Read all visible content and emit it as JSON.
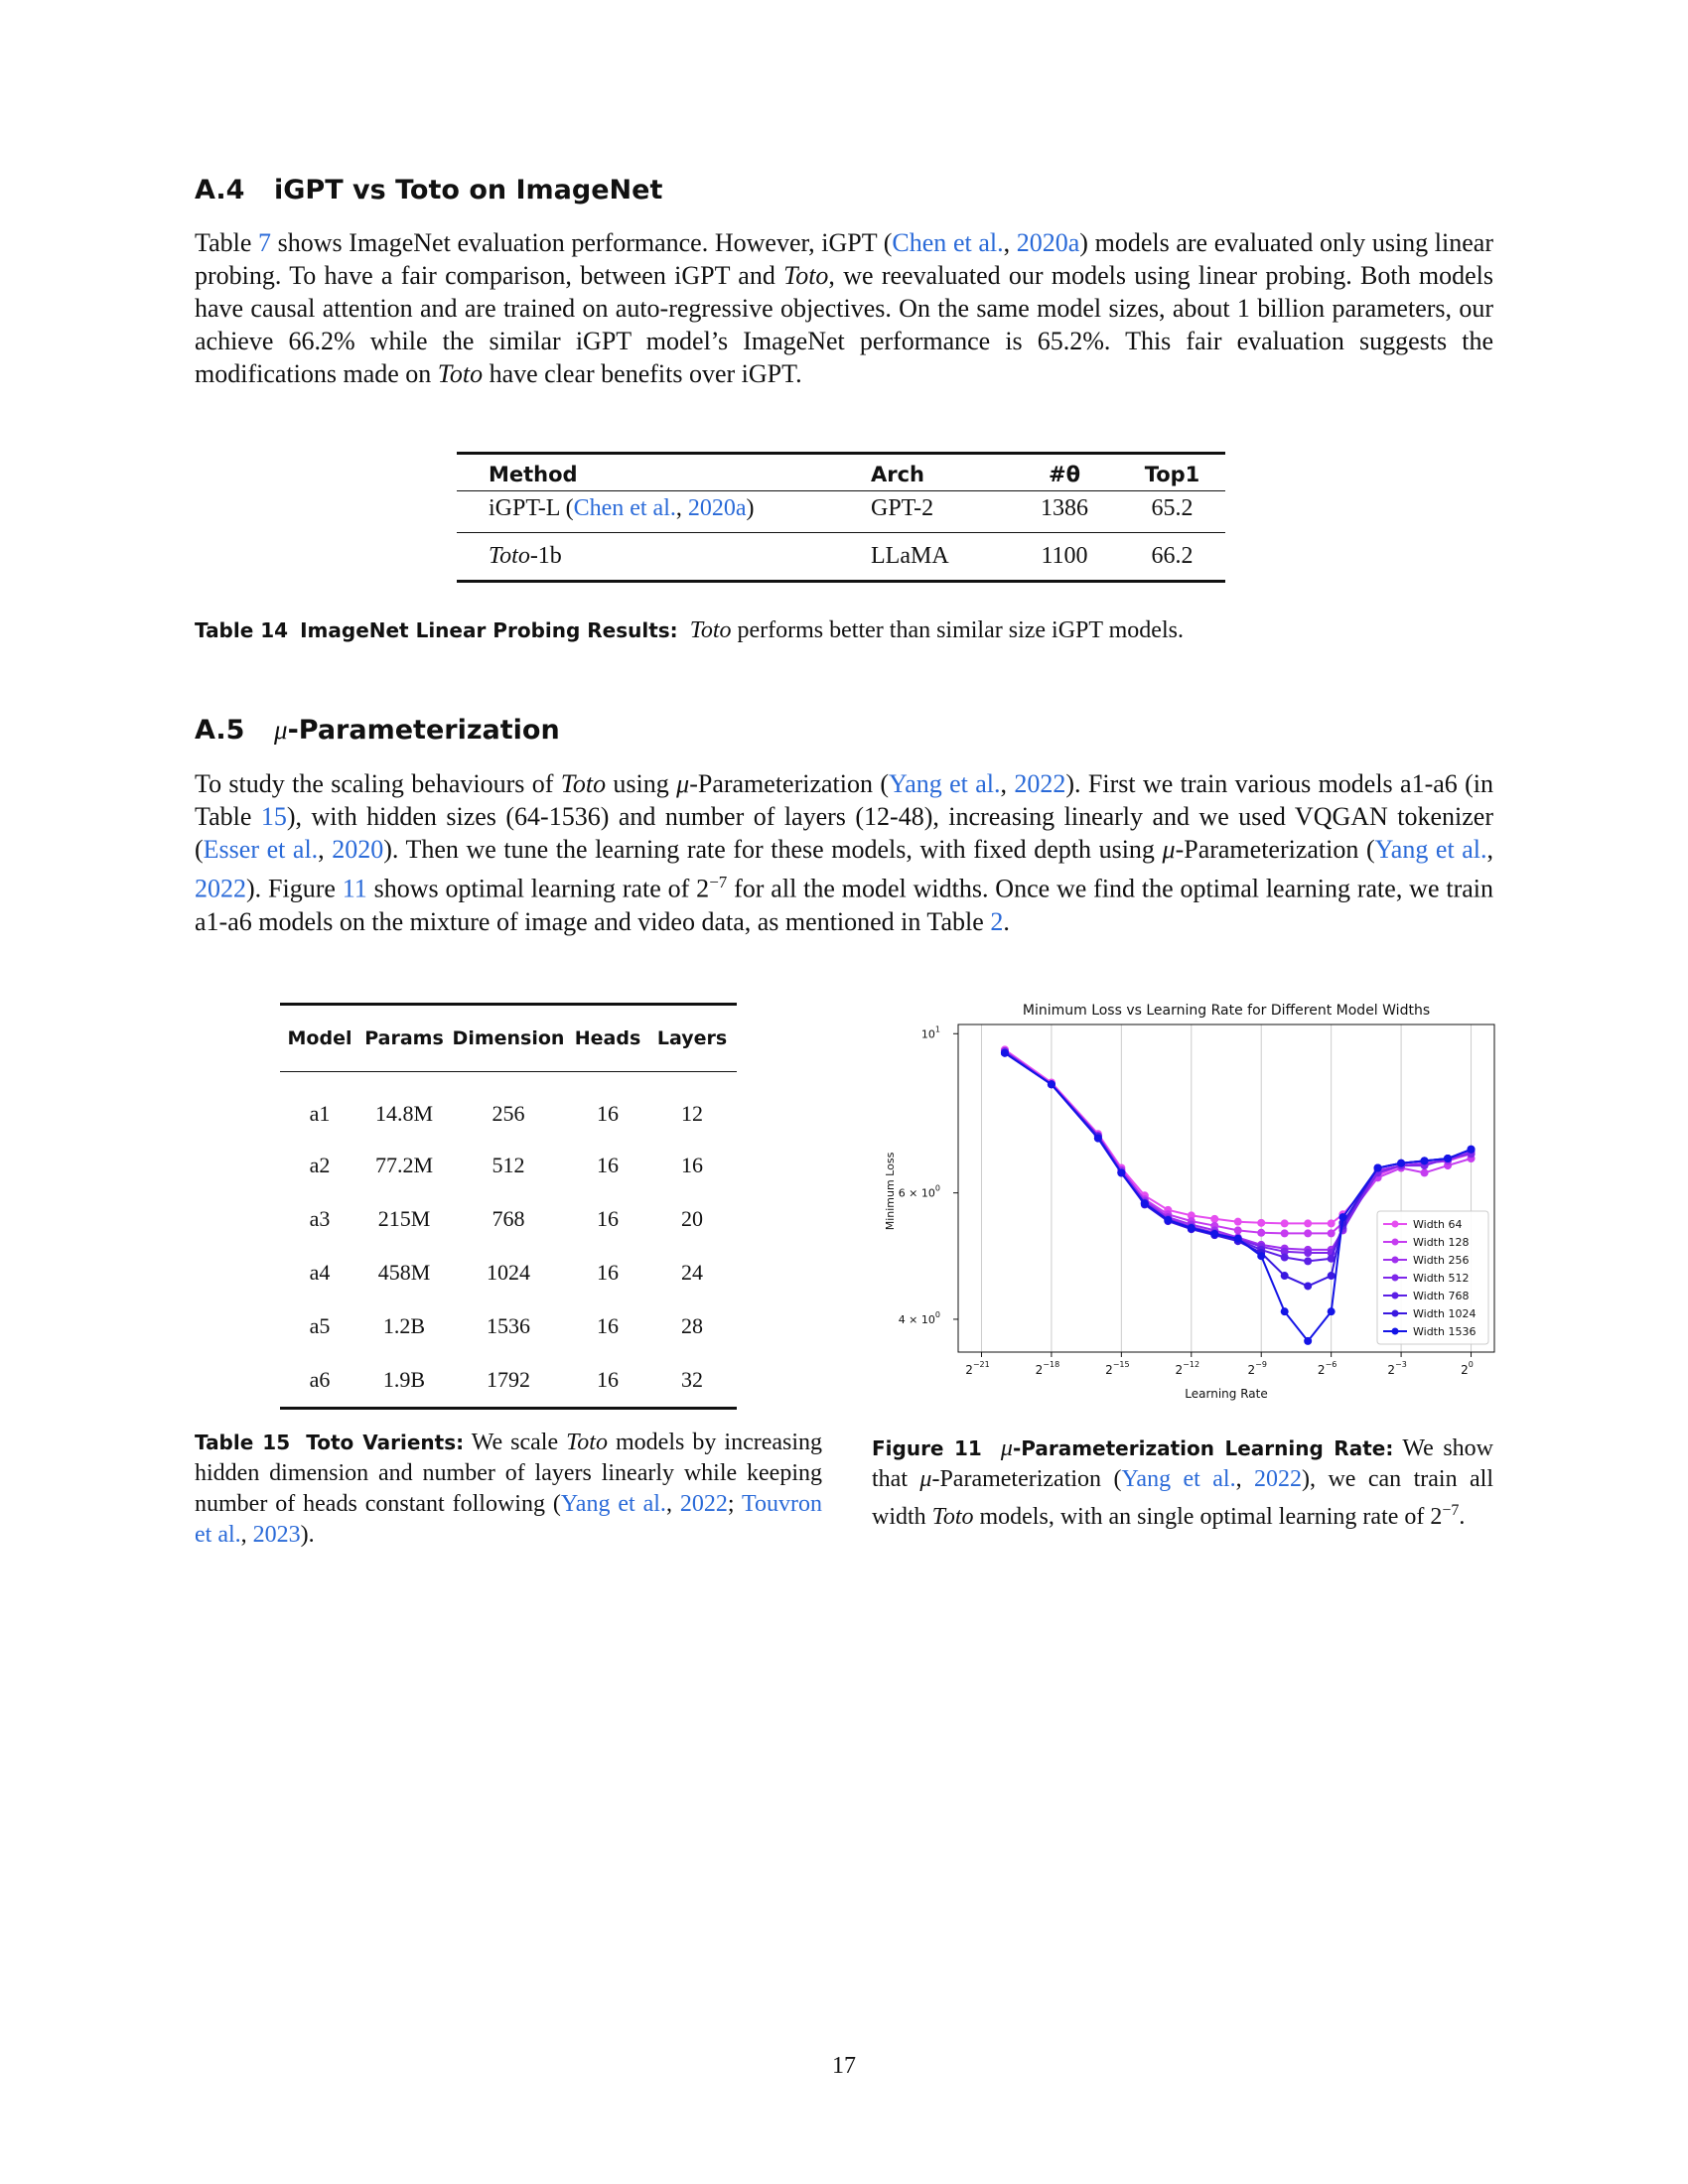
{
  "section_a4": {
    "number": "A.4",
    "title": "iGPT vs Toto on ImageNet",
    "para": {
      "s1a": "Table ",
      "s1ref": "7",
      "s1b": " shows ImageNet evaluation performance. However, iGPT (",
      "cite1": "Chen et al.",
      "cite1sep": ", ",
      "cite1year": "2020a",
      "s2": ") models are evaluated only using linear probing. To have a fair comparison, between iGPT and ",
      "toto1": "Toto",
      "s3": ", we reevaluated our models using linear probing. Both models have causal attention and are trained on auto-regressive objectives. On the same model sizes, about 1 billion parameters, our achieve 66.2% while the similar iGPT model’s ImageNet performance is 65.2%. This fair evaluation suggests the modifications made on ",
      "toto2": "Toto",
      "s4": " have clear benefits over iGPT."
    }
  },
  "table14": {
    "headers": [
      "Method",
      "Arch",
      "#θ",
      "Top1"
    ],
    "rows": [
      {
        "method_pre": "iGPT-L (",
        "method_cite": "Chen et al.",
        "method_sep": ", ",
        "method_year": "2020a",
        "method_post": ")",
        "arch": "GPT-2",
        "params": "1386",
        "top1": "65.2"
      },
      {
        "method_it": "Toto",
        "method_rest": "-1b",
        "arch": "LLaMA",
        "params": "1100",
        "top1": "66.2"
      }
    ],
    "caption_label": "Table 14",
    "caption_title": "ImageNet Linear Probing Results:",
    "caption_it": "Toto",
    "caption_text": " performs better than similar size iGPT models."
  },
  "section_a5": {
    "number": "A.5",
    "mu": "μ",
    "title": "-Parameterization",
    "para": {
      "a": "To study the scaling behaviours of ",
      "toto": "Toto",
      "b": " using ",
      "mu1": "μ",
      "c": "-Parameterization (",
      "cite1": "Yang et al.",
      "sep": ", ",
      "year1": "2022",
      "d": "). First we train various models a1-a6 (in Table ",
      "ref15": "15",
      "e": "), with hidden sizes (64-1536) and number of layers (12-48), increasing linearly and we used VQGAN tokenizer (",
      "cite2": "Esser et al.",
      "year2": "2020",
      "f": "). Then we tune the learning rate for these models, with fixed depth using ",
      "mu2": "μ",
      "g": "-Parameterization (",
      "cite3": "Yang et al.",
      "year3": "2022",
      "h": "). Figure ",
      "ref11": "11",
      "i": " shows optimal learning rate of 2",
      "exp": "−7",
      "j": " for all the model widths. Once we find the optimal learning rate, we train a1-a6 models on the mixture of image and video data, as mentioned in Table ",
      "ref2": "2",
      "k": "."
    }
  },
  "table15": {
    "headers": [
      "Model",
      "Params",
      "Dimension",
      "Heads",
      "Layers"
    ],
    "rows": [
      [
        "a1",
        "14.8M",
        "256",
        "16",
        "12"
      ],
      [
        "a2",
        "77.2M",
        "512",
        "16",
        "16"
      ],
      [
        "a3",
        "215M",
        "768",
        "16",
        "20"
      ],
      [
        "a4",
        "458M",
        "1024",
        "16",
        "24"
      ],
      [
        "a5",
        "1.2B",
        "1536",
        "16",
        "28"
      ],
      [
        "a6",
        "1.9B",
        "1792",
        "16",
        "32"
      ]
    ],
    "caption_label": "Table 15",
    "caption_title": "Toto Varients:",
    "caption_a": " We scale ",
    "caption_it": "Toto",
    "caption_b": " models by increasing hidden dimension and number of layers linearly while keeping number of heads constant following (",
    "cite1": "Yang et al.",
    "sep": ", ",
    "year1": "2022",
    "semi": "; ",
    "cite2": "Touvron et al.",
    "year2": "2023",
    "end": ")."
  },
  "figure11": {
    "caption_label": "Figure 11",
    "caption_mu": "μ",
    "caption_title": "-Parameterization Learning Rate:",
    "caption_a": " We show that ",
    "mu": "μ",
    "caption_b": "-Parameterization (",
    "cite": "Yang et al.",
    "sep": ", ",
    "year": "2022",
    "caption_c": "), we can train all width ",
    "toto": "Toto",
    "caption_d": " models, with an single optimal learning rate of 2",
    "exp": "−7",
    "caption_e": "."
  },
  "chart_data": {
    "type": "line",
    "title": "Minimum Loss vs Learning Rate for Different Model Widths",
    "xlabel": "Learning Rate",
    "ylabel": "Minimum Loss",
    "x_scale": "log2",
    "y_scale": "log10",
    "xlim": [
      -22,
      1
    ],
    "ylim": [
      3.6,
      10.3
    ],
    "x_ticks": [
      {
        "value": -21,
        "label": "−21"
      },
      {
        "value": -18,
        "label": "−18"
      },
      {
        "value": -15,
        "label": "−15"
      },
      {
        "value": -12,
        "label": "−12"
      },
      {
        "value": -9,
        "label": "−9"
      },
      {
        "value": -6,
        "label": "−6"
      },
      {
        "value": -3,
        "label": "−3"
      },
      {
        "value": 0,
        "label": "0"
      }
    ],
    "y_ticks": [
      {
        "value": 10,
        "label": "10",
        "exp": "1"
      },
      {
        "value": 6,
        "label": "6 × 10",
        "exp": "0"
      },
      {
        "value": 4,
        "label": "4 × 10",
        "exp": "0"
      }
    ],
    "grid": "vertical",
    "legend_position": "lower-right",
    "x": [
      -20,
      -18,
      -16,
      -15,
      -14,
      -13,
      -12,
      -11,
      -10,
      -9,
      -8,
      -7,
      -6,
      -5.5,
      -4,
      -3,
      -2,
      -1,
      0
    ],
    "series": [
      {
        "name": "Width 64",
        "color": "#e54ef0",
        "values": [
          9.5,
          8.55,
          7.25,
          6.5,
          5.95,
          5.68,
          5.58,
          5.52,
          5.47,
          5.45,
          5.44,
          5.44,
          5.44,
          5.6,
          6.35,
          6.55,
          6.6,
          6.65,
          6.8
        ]
      },
      {
        "name": "Width 128",
        "color": "#c53cf0",
        "values": [
          9.45,
          8.5,
          7.2,
          6.45,
          5.88,
          5.6,
          5.48,
          5.4,
          5.32,
          5.28,
          5.27,
          5.27,
          5.27,
          5.45,
          6.3,
          6.5,
          6.4,
          6.55,
          6.7
        ]
      },
      {
        "name": "Width 256",
        "color": "#a030ee",
        "values": [
          9.45,
          8.5,
          7.2,
          6.45,
          5.85,
          5.55,
          5.42,
          5.32,
          5.2,
          5.08,
          5.02,
          5.0,
          5.0,
          5.32,
          6.45,
          6.55,
          6.6,
          6.65,
          6.85
        ]
      },
      {
        "name": "Width 512",
        "color": "#7e27ea",
        "values": [
          9.45,
          8.5,
          7.2,
          6.4,
          5.82,
          5.52,
          5.38,
          5.28,
          5.18,
          5.05,
          4.97,
          4.95,
          4.95,
          5.35,
          6.4,
          6.55,
          6.55,
          6.7,
          6.8
        ]
      },
      {
        "name": "Width 768",
        "color": "#5b1fe6",
        "values": [
          9.4,
          8.5,
          7.2,
          6.4,
          5.8,
          5.5,
          5.36,
          5.26,
          5.16,
          5.0,
          4.88,
          4.82,
          4.86,
          5.4,
          6.5,
          6.6,
          6.65,
          6.7,
          6.9
        ]
      },
      {
        "name": "Width 1024",
        "color": "#3a18e0",
        "values": [
          9.4,
          8.5,
          7.15,
          6.4,
          5.78,
          5.48,
          5.34,
          5.24,
          5.14,
          4.95,
          4.6,
          4.45,
          4.6,
          5.45,
          6.5,
          6.6,
          6.65,
          6.7,
          6.9
        ]
      },
      {
        "name": "Width 1536",
        "color": "#1414e6",
        "values": [
          9.4,
          8.5,
          7.15,
          6.4,
          5.8,
          5.5,
          5.36,
          5.26,
          5.18,
          4.9,
          4.1,
          3.73,
          4.1,
          5.55,
          6.5,
          6.6,
          6.65,
          6.7,
          6.9
        ]
      }
    ]
  },
  "page_number": "17"
}
